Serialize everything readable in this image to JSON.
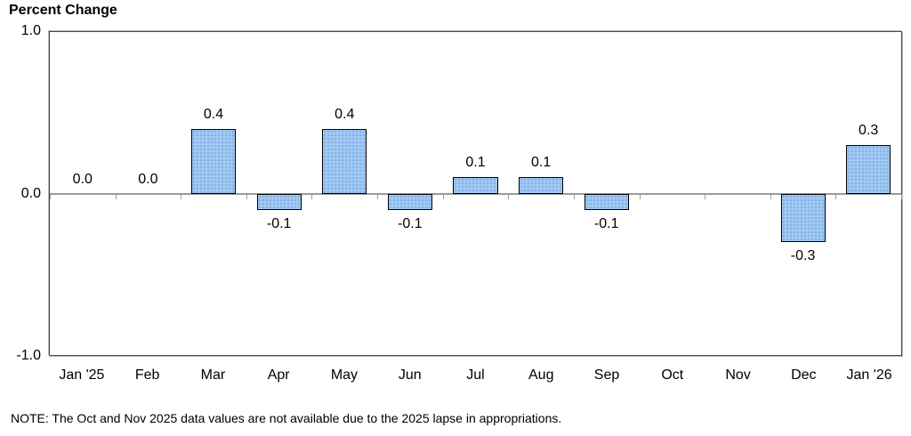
{
  "title": "Percent Change",
  "note": "NOTE: The Oct and Nov 2025 data values are not available due to the 2025 lapse in appropriations.",
  "y_axis": {
    "tick_top": "1.0",
    "tick_zero": "0.0",
    "tick_bottom": "-1.0"
  },
  "colors": {
    "bar_fill": "#9fc9f5",
    "bar_dot": "#7fa6d8",
    "bar_border": "#000000",
    "zero_line": "#9a9a9a",
    "plot_border": "#4a4a4a"
  },
  "chart_data": {
    "type": "bar",
    "title": "Percent Change",
    "xlabel": "",
    "ylabel": "Percent Change",
    "ylim": [
      -1.0,
      1.0
    ],
    "y_ticks": [
      1.0,
      0.0,
      -1.0
    ],
    "grid": false,
    "legend": false,
    "categories": [
      "Jan '25",
      "Feb",
      "Mar",
      "Apr",
      "May",
      "Jun",
      "Jul",
      "Aug",
      "Sep",
      "Oct",
      "Nov",
      "Dec",
      "Jan '26"
    ],
    "values": [
      0.0,
      0.0,
      0.4,
      -0.1,
      0.4,
      -0.1,
      0.1,
      0.1,
      -0.1,
      null,
      null,
      -0.3,
      0.3
    ],
    "point_labels": [
      "0.0",
      "0.0",
      "0.4",
      "-0.1",
      "0.4",
      "-0.1",
      "0.1",
      "0.1",
      "-0.1",
      null,
      null,
      "-0.3",
      "0.3"
    ],
    "missing_categories": [
      "Oct",
      "Nov"
    ],
    "annotations": [
      "NOTE: The Oct and Nov 2025 data values are not available due to the 2025 lapse in appropriations."
    ]
  }
}
